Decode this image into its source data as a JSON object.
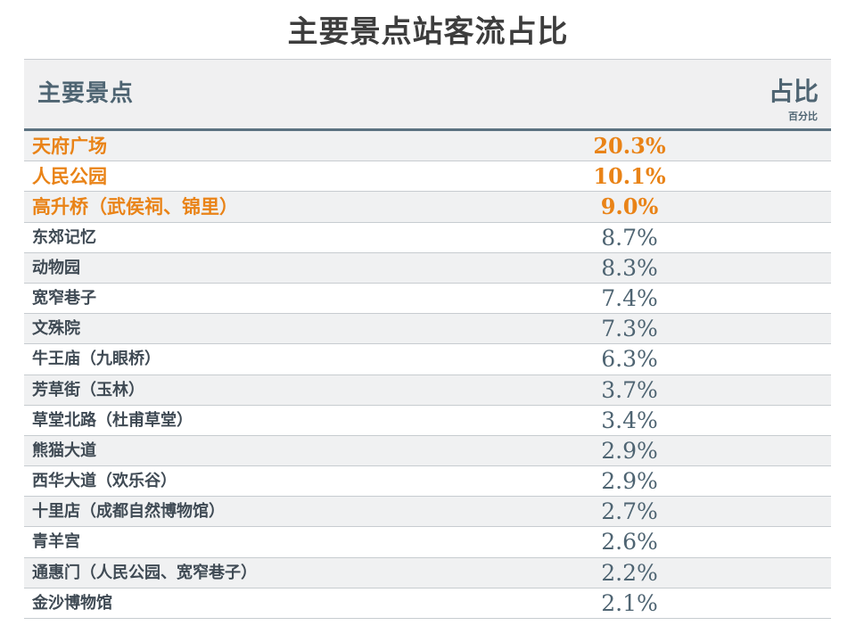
{
  "chart_data": {
    "type": "table",
    "title": "主要景点站客流占比",
    "columns": [
      "主要景点",
      "占比"
    ],
    "value_unit": "百分比",
    "highlight_color": "#e98317",
    "text_color": "#4e6472",
    "categories": [
      "天府广场",
      "人民公园",
      "高升桥（武侯祠、锦里）",
      "东郊记忆",
      "动物园",
      "宽窄巷子",
      "文殊院",
      "牛王庙（九眼桥）",
      "芳草街（玉林）",
      "草堂北路（杜甫草堂）",
      "熊猫大道",
      "西华大道（欢乐谷）",
      "十里店（成都自然博物馆）",
      "青羊宫",
      "通惠门（人民公园、宽窄巷子）",
      "金沙博物馆"
    ],
    "values": [
      20.3,
      10.1,
      9.0,
      8.7,
      8.3,
      7.4,
      7.3,
      6.3,
      3.7,
      3.4,
      2.9,
      2.9,
      2.7,
      2.6,
      2.2,
      2.1
    ],
    "value_labels": [
      "20.3%",
      "10.1%",
      "9.0%",
      "8.7%",
      "8.3%",
      "7.4%",
      "7.3%",
      "6.3%",
      "3.7%",
      "3.4%",
      "2.9%",
      "2.9%",
      "2.7%",
      "2.6%",
      "2.2%",
      "2.1%"
    ],
    "highlighted": [
      true,
      true,
      true,
      false,
      false,
      false,
      false,
      false,
      false,
      false,
      false,
      false,
      false,
      false,
      false,
      false
    ]
  }
}
